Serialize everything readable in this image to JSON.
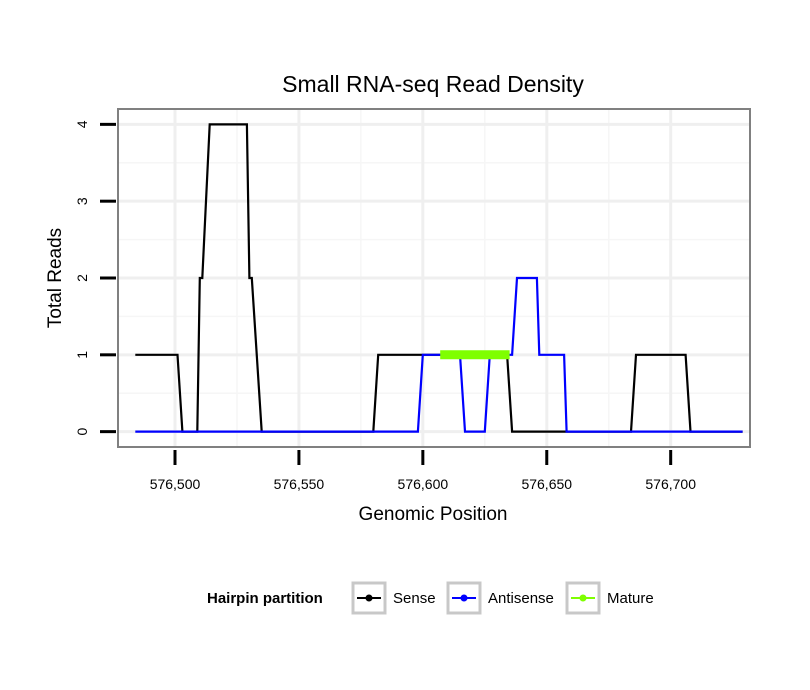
{
  "chart_data": {
    "type": "line",
    "title": "Small RNA-seq Read Density",
    "xlabel": "Genomic Position",
    "ylabel": "Total Reads",
    "xlim": [
      576477,
      576732
    ],
    "ylim": [
      -0.2,
      4.2
    ],
    "x_ticks": [
      576500,
      576550,
      576600,
      576650,
      576700
    ],
    "x_tick_labels": [
      "576,500",
      "576,550",
      "576,600",
      "576,650",
      "576,700"
    ],
    "y_ticks": [
      0,
      1,
      2,
      3,
      4
    ],
    "y_tick_labels": [
      "0",
      "1",
      "2",
      "3",
      "4"
    ],
    "grid": true,
    "legend": {
      "title": "Hairpin partition",
      "position": "bottom",
      "entries": [
        "Sense",
        "Antisense",
        "Mature"
      ]
    },
    "series": [
      {
        "name": "Sense",
        "color": "#000000",
        "x": [
          576484,
          576501,
          576503,
          576509,
          576510,
          576511,
          576514,
          576529,
          576530,
          576531,
          576535,
          576580,
          576582,
          576634,
          576636,
          576684,
          576686,
          576706,
          576708,
          576729
        ],
        "y": [
          1,
          1,
          0,
          0,
          2,
          2,
          4,
          4,
          2,
          2,
          0,
          0,
          1,
          1,
          0,
          0,
          1,
          1,
          0,
          0
        ]
      },
      {
        "name": "Antisense",
        "color": "#0000ff",
        "x": [
          576484,
          576598,
          576600,
          576615,
          576617,
          576625,
          576627,
          576636,
          576638,
          576646,
          576647,
          576657,
          576658,
          576729
        ],
        "y": [
          0,
          0,
          1,
          1,
          0,
          0,
          1,
          1,
          2,
          2,
          1,
          1,
          0,
          0
        ]
      },
      {
        "name": "Mature",
        "color": "#7fff00",
        "x": [
          576607,
          576635
        ],
        "y": [
          1,
          1
        ]
      }
    ]
  }
}
